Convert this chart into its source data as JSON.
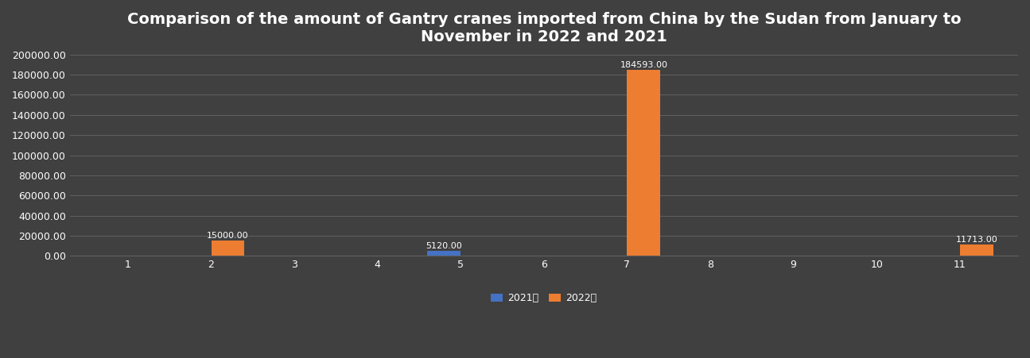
{
  "title": "Comparison of the amount of Gantry cranes imported from China by the Sudan from January to\nNovember in 2022 and 2021",
  "months": [
    1,
    2,
    3,
    4,
    5,
    6,
    7,
    8,
    9,
    10,
    11
  ],
  "data_2021": [
    0,
    0,
    0,
    0,
    5120.0,
    0,
    0,
    0,
    0,
    0,
    0
  ],
  "data_2022": [
    0,
    15000.0,
    0,
    0,
    0,
    0,
    184593.0,
    0,
    0,
    0,
    11713.0
  ],
  "color_2021": "#4472c4",
  "color_2022": "#ed7d31",
  "background_color": "#404040",
  "grid_color": "#606060",
  "text_color": "#ffffff",
  "legend_2021": "2021年",
  "legend_2022": "2022年",
  "ylim": [
    0,
    200000
  ],
  "yticks": [
    0,
    20000,
    40000,
    60000,
    80000,
    100000,
    120000,
    140000,
    160000,
    180000,
    200000
  ],
  "bar_width": 0.4,
  "title_fontsize": 14,
  "label_fontsize": 9,
  "tick_fontsize": 9,
  "annotation_fontsize": 8
}
